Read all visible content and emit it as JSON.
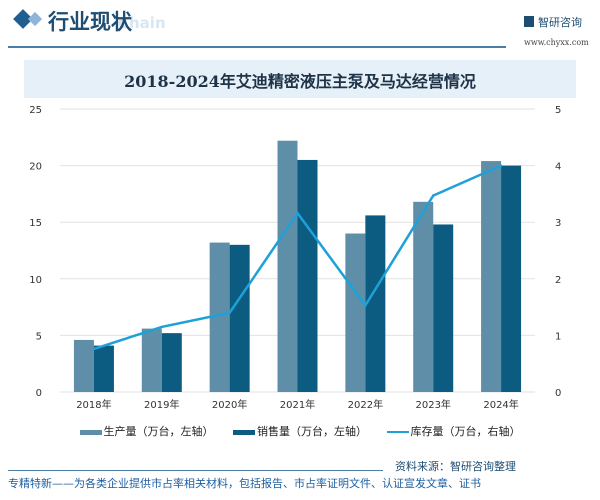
{
  "header": {
    "section_title": "行业现状",
    "section_subtitle": "Chain",
    "logo_text": "智研咨询",
    "url": "www.chyxx.com"
  },
  "chart_data": {
    "type": "bar",
    "title": "2018-2024年艾迪精密液压主泵及马达经营情况",
    "categories": [
      "2018年",
      "2019年",
      "2020年",
      "2021年",
      "2022年",
      "2023年",
      "2024年"
    ],
    "series": [
      {
        "name": "生产量（万台，左轴）",
        "type": "bar",
        "axis": "left",
        "color": "#5f8fa8",
        "values": [
          4.6,
          5.6,
          13.2,
          22.2,
          14.0,
          16.8,
          20.4
        ]
      },
      {
        "name": "销售量（万台，左轴）",
        "type": "bar",
        "axis": "left",
        "color": "#0b5c80",
        "values": [
          4.1,
          5.2,
          13.0,
          20.5,
          15.6,
          14.8,
          20.0
        ]
      },
      {
        "name": "库存量（万台，右轴）",
        "type": "line",
        "axis": "right",
        "color": "#1ea0d8",
        "values": [
          0.76,
          1.15,
          1.4,
          3.16,
          1.53,
          3.47,
          4.0
        ]
      }
    ],
    "ylim_left": [
      0,
      25
    ],
    "yticks_left": [
      0,
      5,
      10,
      15,
      20,
      25
    ],
    "ylim_right": [
      0,
      5
    ],
    "yticks_right": [
      0,
      1,
      2,
      3,
      4,
      5
    ],
    "grid": true,
    "legend": "bottom"
  },
  "source": "资料来源：智研咨询整理",
  "footer": "专精特新——为各类企业提供市占率相关材料，包括报告、市占率证明文件、认证宣发文章、证书"
}
